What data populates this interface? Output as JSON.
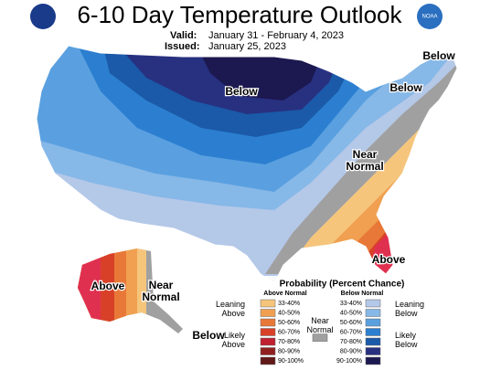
{
  "header": {
    "title": "6-10 Day Temperature Outlook",
    "valid_label": "Valid:",
    "valid_dates": "January 31 - February 4, 2023",
    "issued_label": "Issued:",
    "issued_date": "January 25, 2023",
    "agency": "NOAA"
  },
  "map_labels": [
    "Below",
    "Below",
    "Below",
    "Near Normal",
    "Above",
    "Above",
    "Near Normal",
    "Below"
  ],
  "legend": {
    "title": "Probability (Percent Chance)",
    "above_heading": "Above Normal",
    "below_heading": "Below Normal",
    "near_heading": "Near Normal",
    "leaning_above": "Leaning Above",
    "likely_above": "Likely Above",
    "leaning_below": "Leaning Below",
    "likely_below": "Likely Below",
    "near_color": "#a0a0a0",
    "above_ranges": [
      {
        "label": "33-40%",
        "color": "#f5c57c"
      },
      {
        "label": "40-50%",
        "color": "#f0a050"
      },
      {
        "label": "50-60%",
        "color": "#e87838"
      },
      {
        "label": "60-70%",
        "color": "#d84028"
      },
      {
        "label": "70-80%",
        "color": "#c02030"
      },
      {
        "label": "80-90%",
        "color": "#902020"
      },
      {
        "label": "90-100%",
        "color": "#601818"
      }
    ],
    "below_ranges": [
      {
        "label": "33-40%",
        "color": "#b4c8e8"
      },
      {
        "label": "40-50%",
        "color": "#86b8e8"
      },
      {
        "label": "50-60%",
        "color": "#5aa0e0"
      },
      {
        "label": "60-70%",
        "color": "#2c7fd0"
      },
      {
        "label": "70-80%",
        "color": "#1a5aa8"
      },
      {
        "label": "80-90%",
        "color": "#283080"
      },
      {
        "label": "90-100%",
        "color": "#1c1850"
      }
    ]
  }
}
